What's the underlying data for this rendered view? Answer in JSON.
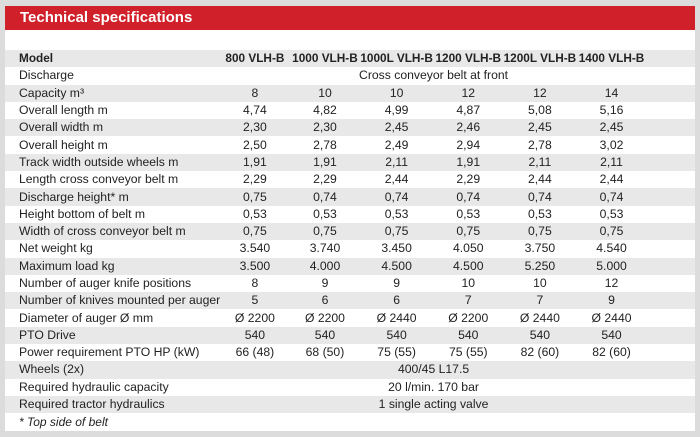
{
  "title": "Technical specifications",
  "models": [
    "800 VLH-B",
    "1000 VLH-B",
    "1000L VLH-B",
    "1200 VLH-B",
    "1200L VLH-B",
    "1400 VLH-B"
  ],
  "model_label": "Model",
  "rows": [
    {
      "label": "Discharge",
      "span": "Cross conveyor belt at front"
    },
    {
      "label": "Capacity m³",
      "values": [
        "8",
        "10",
        "10",
        "12",
        "12",
        "14"
      ]
    },
    {
      "label": "Overall length m",
      "values": [
        "4,74",
        "4,82",
        "4,99",
        "4,87",
        "5,08",
        "5,16"
      ]
    },
    {
      "label": "Overall width m",
      "values": [
        "2,30",
        "2,30",
        "2,45",
        "2,46",
        "2,45",
        "2,45"
      ]
    },
    {
      "label": "Overall height m",
      "values": [
        "2,50",
        "2,78",
        "2,49",
        "2,94",
        "2,78",
        "3,02"
      ]
    },
    {
      "label": "Track width outside wheels m",
      "values": [
        "1,91",
        "1,91",
        "2,11",
        "1,91",
        "2,11",
        "2,11"
      ]
    },
    {
      "label": "Length cross conveyor belt m",
      "values": [
        "2,29",
        "2,29",
        "2,44",
        "2,29",
        "2,44",
        "2,44"
      ]
    },
    {
      "label": "Discharge height* m",
      "values": [
        "0,75",
        "0,74",
        "0,74",
        "0,74",
        "0,74",
        "0,74"
      ]
    },
    {
      "label": "Height bottom of belt m",
      "values": [
        "0,53",
        "0,53",
        "0,53",
        "0,53",
        "0,53",
        "0,53"
      ]
    },
    {
      "label": "Width of cross conveyor belt m",
      "values": [
        "0,75",
        "0,75",
        "0,75",
        "0,75",
        "0,75",
        "0,75"
      ]
    },
    {
      "label": "Net weight kg",
      "values": [
        "3.540",
        "3.740",
        "3.450",
        "4.050",
        "3.750",
        "4.540"
      ]
    },
    {
      "label": "Maximum load kg",
      "values": [
        "3.500",
        "4.000",
        "4.500",
        "4.500",
        "5.250",
        "5.000"
      ]
    },
    {
      "label": "Number of auger knife positions",
      "values": [
        "8",
        "9",
        "9",
        "10",
        "10",
        "12"
      ]
    },
    {
      "label": "Number of knives mounted per auger",
      "values": [
        "5",
        "6",
        "6",
        "7",
        "7",
        "9"
      ]
    },
    {
      "label": "Diameter of auger Ø mm",
      "values": [
        "Ø 2200",
        "Ø 2200",
        "Ø 2440",
        "Ø 2200",
        "Ø 2440",
        "Ø 2440"
      ]
    },
    {
      "label": "PTO Drive",
      "values": [
        "540",
        "540",
        "540",
        "540",
        "540",
        "540"
      ]
    },
    {
      "label": "Power requirement PTO HP (kW)",
      "values": [
        "66 (48)",
        "68 (50)",
        "75 (55)",
        "75 (55)",
        "82 (60)",
        "82 (60)"
      ]
    },
    {
      "label": "Wheels (2x)",
      "span": "400/45 L17.5"
    },
    {
      "label": "Required hydraulic capacity",
      "span": "20 l/min. 170 bar"
    },
    {
      "label": "Required tractor hydraulics",
      "span": "1 single acting valve"
    }
  ],
  "footnote": "* Top side of belt"
}
